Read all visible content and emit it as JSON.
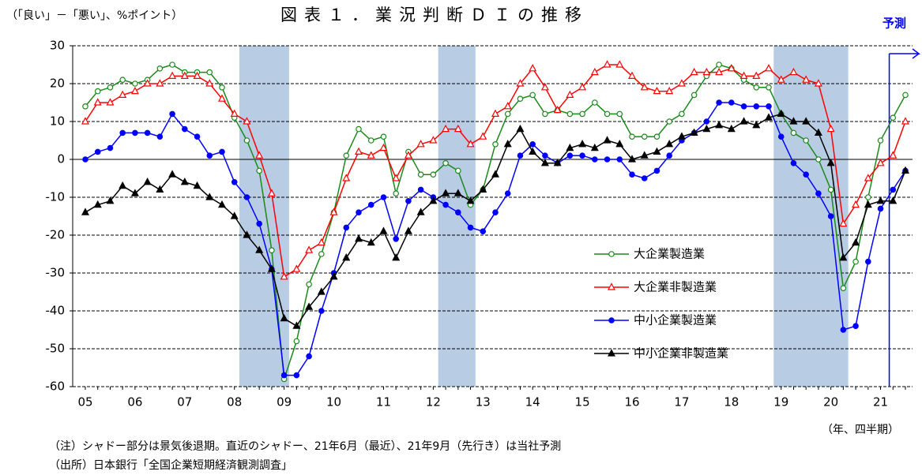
{
  "chart_data": {
    "type": "line",
    "title": "図表１．業況判断ＤＩの推移",
    "y_label": "（「良い」－「悪い」、%ポイント）",
    "x_label": "（年、四半期）",
    "forecast_label": "予測",
    "notes": [
      "（注）シャドー部分は景気後退期。直近のシャドー、21年6月（最近）、21年9月（先行き）は当社予測",
      "（出所）日本銀行「全国企業短期経済観測調査」"
    ],
    "categories": [
      "05",
      null,
      null,
      null,
      "06",
      null,
      null,
      null,
      "07",
      null,
      null,
      null,
      "08",
      null,
      null,
      null,
      "09",
      null,
      null,
      null,
      "10",
      null,
      null,
      null,
      "11",
      null,
      null,
      null,
      "12",
      null,
      null,
      null,
      "13",
      null,
      null,
      null,
      "14",
      null,
      null,
      null,
      "15",
      null,
      null,
      null,
      "16",
      null,
      null,
      null,
      "17",
      null,
      null,
      null,
      "18",
      null,
      null,
      null,
      "19",
      null,
      null,
      null,
      "20",
      null,
      null,
      null,
      "21",
      null,
      null
    ],
    "recession_periods": [
      [
        12,
        16
      ],
      [
        28,
        31
      ],
      [
        55,
        61
      ]
    ],
    "forecast_start": 65,
    "ylim": [
      -60,
      30
    ],
    "yticks": [
      -60,
      -50,
      -40,
      -30,
      -20,
      -10,
      0,
      10,
      20,
      30
    ],
    "grid": true,
    "series": [
      {
        "name": "大企業製造業",
        "color": "#1a8a1a",
        "marker": "circle-open",
        "values": [
          14,
          18,
          19,
          21,
          20,
          21,
          24,
          25,
          23,
          23,
          23,
          19,
          11,
          5,
          -3,
          -24,
          -58,
          -48,
          -33,
          -25,
          -14,
          1,
          8,
          5,
          6,
          -9,
          2,
          -4,
          -4,
          -1,
          -3,
          -12,
          -8,
          4,
          12,
          16,
          17,
          12,
          13,
          12,
          12,
          15,
          12,
          12,
          6,
          6,
          6,
          10,
          12,
          17,
          22,
          25,
          24,
          21,
          19,
          19,
          12,
          7,
          5,
          0,
          -8,
          -34,
          -27,
          -10,
          5,
          11,
          17
        ]
      },
      {
        "name": "大企業非製造業",
        "color": "#ff0000",
        "marker": "triangle-open",
        "values": [
          10,
          15,
          15,
          17,
          18,
          20,
          20,
          22,
          22,
          22,
          20,
          16,
          12,
          10,
          1,
          -9,
          -31,
          -29,
          -24,
          -22,
          -14,
          -5,
          2,
          1,
          3,
          -5,
          1,
          4,
          5,
          8,
          8,
          4,
          6,
          12,
          14,
          20,
          24,
          19,
          13,
          17,
          19,
          23,
          25,
          25,
          22,
          19,
          18,
          18,
          20,
          23,
          23,
          23,
          24,
          22,
          22,
          24,
          21,
          23,
          21,
          20,
          8,
          -17,
          -12,
          -5,
          -1,
          1,
          10
        ]
      },
      {
        "name": "中小企業製造業",
        "color": "#0000ff",
        "marker": "circle",
        "values": [
          0,
          2,
          3,
          7,
          7,
          7,
          6,
          12,
          8,
          6,
          1,
          2,
          -6,
          -10,
          -17,
          -29,
          -57,
          -57,
          -52,
          -40,
          -30,
          -18,
          -14,
          -12,
          -10,
          -21,
          -11,
          -8,
          -10,
          -12,
          -14,
          -18,
          -19,
          -14,
          -9,
          1,
          4,
          1,
          -1,
          1,
          1,
          0,
          0,
          0,
          -4,
          -5,
          -3,
          1,
          5,
          7,
          10,
          15,
          15,
          14,
          14,
          14,
          6,
          -1,
          -4,
          -9,
          -15,
          -45,
          -44,
          -27,
          -13,
          -8,
          -3
        ]
      },
      {
        "name": "中小企業非製造業",
        "color": "#000000",
        "marker": "triangle",
        "values": [
          -14,
          -12,
          -11,
          -7,
          -9,
          -6,
          -8,
          -4,
          -6,
          -7,
          -10,
          -12,
          -15,
          -20,
          -24,
          -29,
          -42,
          -44,
          -39,
          -35,
          -31,
          -26,
          -21,
          -22,
          -19,
          -26,
          -19,
          -14,
          -11,
          -9,
          -9,
          -11,
          -8,
          -4,
          4,
          8,
          2,
          -1,
          -1,
          3,
          4,
          3,
          5,
          4,
          0,
          1,
          2,
          4,
          6,
          7,
          8,
          9,
          8,
          10,
          9,
          11,
          12,
          10,
          10,
          7,
          -1,
          -26,
          -22,
          -12,
          -11,
          -11,
          -3
        ]
      }
    ]
  }
}
